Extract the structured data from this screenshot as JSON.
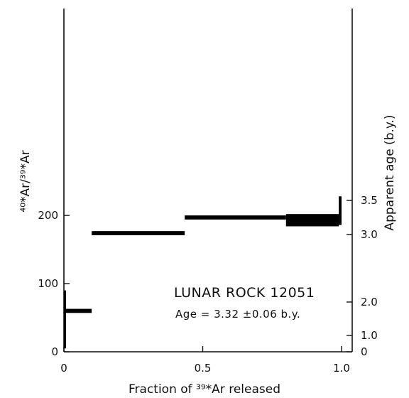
{
  "chart_data": {
    "type": "step",
    "x_label": "Fraction of ³⁹*Ar released",
    "x_ticks": [
      {
        "value": 0,
        "label": "0"
      },
      {
        "value": 0.5,
        "label": "0.5"
      },
      {
        "value": 1.0,
        "label": "1.0"
      }
    ],
    "xlim": [
      0,
      1.0
    ],
    "y_label": "⁴⁰*Ar/³⁹*Ar",
    "y_ticks": [
      {
        "value": 0,
        "label": "0"
      },
      {
        "value": 100,
        "label": "100"
      },
      {
        "value": 200,
        "label": "200"
      }
    ],
    "ylim": [
      0,
      250
    ],
    "y2_label": "Apparent age (b.y.)",
    "y2_ticks": [
      {
        "ratio": 0,
        "label": "0"
      },
      {
        "ratio": 24,
        "label": "1.0"
      },
      {
        "ratio": 73,
        "label": "2.0"
      },
      {
        "ratio": 172,
        "label": "3.0"
      },
      {
        "ratio": 222,
        "label": "3.5"
      }
    ],
    "steps": [
      {
        "x_start": 0.0,
        "x_end": 0.005,
        "y_low": 5,
        "y_high": 90
      },
      {
        "x_start": 0.005,
        "x_end": 0.1,
        "y_low": 57,
        "y_high": 63
      },
      {
        "x_start": 0.1,
        "x_end": 0.435,
        "y_low": 171,
        "y_high": 177
      },
      {
        "x_start": 0.435,
        "x_end": 0.8,
        "y_low": 194,
        "y_high": 200
      },
      {
        "x_start": 0.8,
        "x_end": 0.99,
        "y_low": 184,
        "y_high": 202
      },
      {
        "x_start": 0.99,
        "x_end": 1.0,
        "y_low": 186,
        "y_high": 228
      }
    ],
    "sample_label": "LUNAR ROCK 12051",
    "age_label": "Age = 3.32 ±0.06 b.y."
  }
}
